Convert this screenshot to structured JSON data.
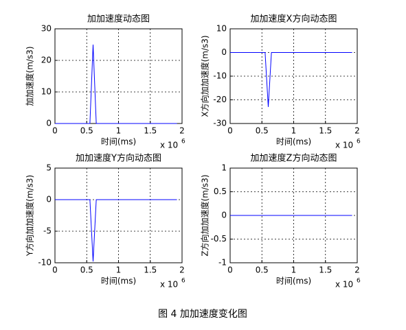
{
  "chart_data": [
    {
      "type": "line",
      "title": "加加速度动态图",
      "x_label": "时间(ms)",
      "y_label": "加加速度(m/s3)",
      "x_exponent_base": "x 10",
      "x_exponent": "6",
      "x": [
        0,
        550000,
        600000,
        650000,
        1920000
      ],
      "series": [
        {
          "color": "#0000ff",
          "values": [
            0,
            0,
            25,
            0,
            0
          ]
        }
      ],
      "xlim": [
        0,
        2000000
      ],
      "xticks": [
        0,
        {
          "value": 500000,
          "label": "0.5"
        },
        {
          "value": 1000000,
          "label": "1"
        },
        {
          "value": 1500000,
          "label": "1.5"
        },
        {
          "value": 2000000,
          "label": "2"
        }
      ],
      "ylim": [
        0,
        30
      ],
      "yticks": [
        0,
        10,
        20,
        30
      ],
      "grid": true
    },
    {
      "type": "line",
      "title": "加加速度X方向动态图",
      "x_label": "时间(ms)",
      "y_label": "X方向加加速度(m/s3)",
      "x_exponent_base": "x 10",
      "x_exponent": "6",
      "x": [
        0,
        550000,
        600000,
        650000,
        1920000
      ],
      "series": [
        {
          "color": "#0000ff",
          "values": [
            0,
            0,
            -23,
            0,
            0
          ]
        }
      ],
      "xlim": [
        0,
        2000000
      ],
      "xticks": [
        0,
        {
          "value": 500000,
          "label": "0.5"
        },
        {
          "value": 1000000,
          "label": "1"
        },
        {
          "value": 1500000,
          "label": "1.5"
        },
        {
          "value": 2000000,
          "label": "2"
        }
      ],
      "ylim": [
        -30,
        10
      ],
      "yticks": [
        -30,
        -20,
        -10,
        0,
        10
      ],
      "grid": true
    },
    {
      "type": "line",
      "title": "加加速度Y方向动态图",
      "x_label": "时间(ms)",
      "y_label": "Y方向加加速度(m/s3)",
      "x_exponent_base": "x 10",
      "x_exponent": "6",
      "x": [
        0,
        550000,
        600000,
        650000,
        1920000
      ],
      "series": [
        {
          "color": "#0000ff",
          "values": [
            0,
            0,
            -9.8,
            0,
            0
          ]
        }
      ],
      "xlim": [
        0,
        2000000
      ],
      "xticks": [
        0,
        {
          "value": 500000,
          "label": "0.5"
        },
        {
          "value": 1000000,
          "label": "1"
        },
        {
          "value": 1500000,
          "label": "1.5"
        },
        {
          "value": 2000000,
          "label": "2"
        }
      ],
      "ylim": [
        -10,
        5
      ],
      "yticks": [
        -10,
        -5,
        0,
        5
      ],
      "grid": true
    },
    {
      "type": "line",
      "title": "加加速度Z方向动态图",
      "x_label": "时间(ms)",
      "y_label": "Z方向加加速度(m/s3)",
      "x_exponent_base": "x 10",
      "x_exponent": "6",
      "x": [
        0,
        1920000
      ],
      "series": [
        {
          "color": "#0000ff",
          "values": [
            0,
            0
          ]
        }
      ],
      "xlim": [
        0,
        2000000
      ],
      "xticks": [
        0,
        {
          "value": 500000,
          "label": "0.5"
        },
        {
          "value": 1000000,
          "label": "1"
        },
        {
          "value": 1500000,
          "label": "1.5"
        },
        {
          "value": 2000000,
          "label": "2"
        }
      ],
      "ylim": [
        -1,
        1
      ],
      "yticks": [
        -1,
        -0.5,
        0,
        0.5,
        1
      ],
      "grid": true
    }
  ],
  "caption": "图 4  加加速度变化图"
}
